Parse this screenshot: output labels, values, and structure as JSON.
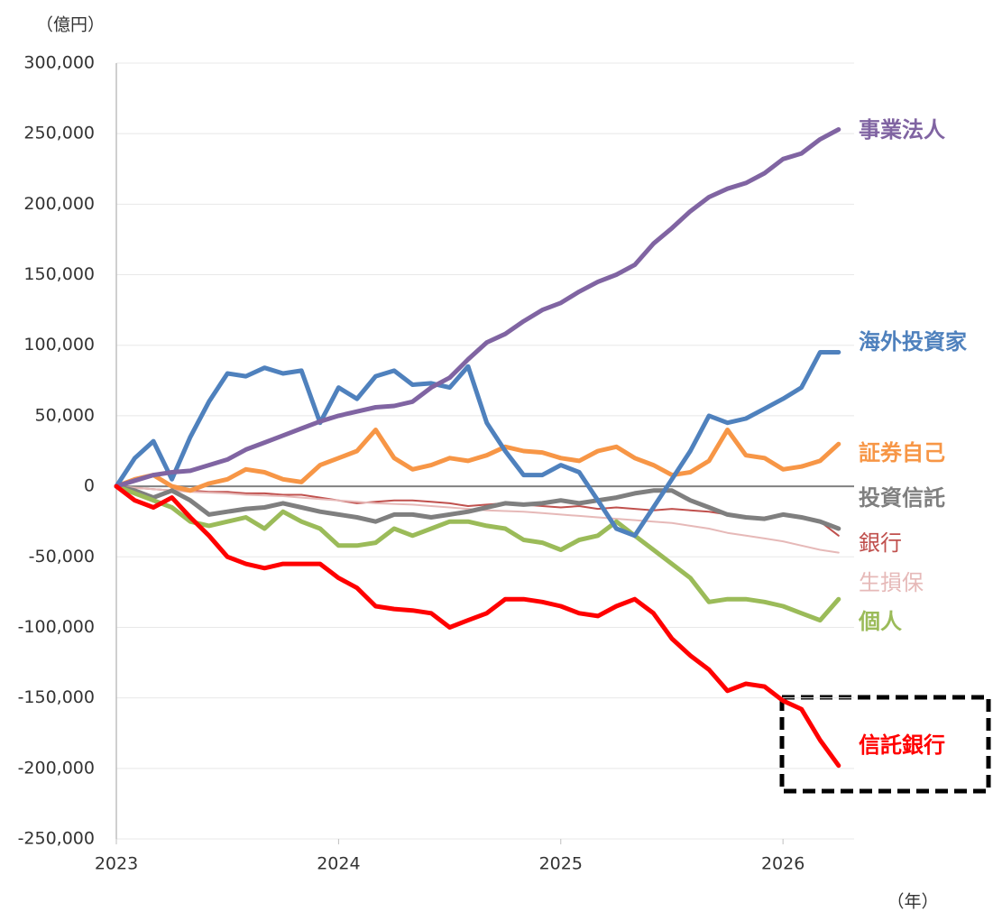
{
  "chart_data": {
    "type": "line",
    "y_label": "（億円）",
    "x_label": "（年）",
    "x": [
      2023,
      2023.083,
      2023.167,
      2023.25,
      2023.333,
      2023.417,
      2023.5,
      2023.583,
      2023.667,
      2023.75,
      2023.833,
      2023.917,
      2024,
      2024.083,
      2024.167,
      2024.25,
      2024.333,
      2024.417,
      2024.5,
      2024.583,
      2024.667,
      2024.75,
      2024.833,
      2024.917,
      2025,
      2025.083,
      2025.167,
      2025.25,
      2025.333,
      2025.417,
      2025.5,
      2025.583,
      2025.667,
      2025.75,
      2025.833,
      2025.917,
      2026,
      2026.083,
      2026.167,
      2026.25
    ],
    "xlim": [
      2023,
      2026.32
    ],
    "xticks": [
      2023,
      2024,
      2025,
      2026
    ],
    "ylim": [
      -250000,
      300000
    ],
    "yticks": [
      {
        "value": -250000,
        "label": "-250,000"
      },
      {
        "value": -200000,
        "label": "-200,000"
      },
      {
        "value": -150000,
        "label": "-150,000"
      },
      {
        "value": -100000,
        "label": "-100,000"
      },
      {
        "value": -50000,
        "label": "-50,000"
      },
      0,
      {
        "value": 50000,
        "label": "50,000"
      },
      {
        "value": 100000,
        "label": "100,000"
      },
      {
        "value": 150000,
        "label": "150,000"
      },
      {
        "value": 200000,
        "label": "200,000"
      },
      {
        "value": 250000,
        "label": "250,000"
      },
      {
        "value": 300000,
        "label": "300,000"
      }
    ],
    "grid": true,
    "series": [
      {
        "name": "銀行",
        "color": "#c0504d",
        "values": [
          0,
          -1000,
          -2000,
          -3000,
          -3000,
          -4000,
          -4000,
          -5000,
          -5000,
          -6000,
          -6000,
          -8000,
          -10000,
          -12000,
          -11000,
          -10000,
          -10000,
          -11000,
          -12000,
          -14000,
          -13000,
          -12000,
          -13000,
          -14000,
          -15000,
          -14000,
          -16000,
          -15000,
          -16000,
          -17000,
          -16000,
          -17000,
          -18000,
          -20000,
          -22000,
          -22000,
          -20000,
          -22000,
          -25000,
          -35000
        ]
      },
      {
        "name": "生損保",
        "color": "#e6b9b8",
        "values": [
          0,
          -1000,
          -2000,
          -3000,
          -4000,
          -4500,
          -5000,
          -6000,
          -6500,
          -7000,
          -8000,
          -9000,
          -10000,
          -11000,
          -12000,
          -12500,
          -13000,
          -14000,
          -15000,
          -16000,
          -17000,
          -17500,
          -18000,
          -19000,
          -20000,
          -21000,
          -22000,
          -23000,
          -24000,
          -25000,
          -26000,
          -28000,
          -30000,
          -33000,
          -35000,
          -37000,
          -39000,
          -42000,
          -45000,
          -47000
        ]
      },
      {
        "name": "証券自己",
        "color": "#f79646",
        "values": [
          0,
          5000,
          8000,
          0,
          -3000,
          2000,
          5000,
          12000,
          10000,
          5000,
          3000,
          15000,
          20000,
          25000,
          40000,
          20000,
          12000,
          15000,
          20000,
          18000,
          22000,
          28000,
          25000,
          24000,
          20000,
          18000,
          25000,
          28000,
          20000,
          15000,
          8000,
          10000,
          18000,
          40000,
          22000,
          20000,
          12000,
          14000,
          18000,
          30000
        ]
      },
      {
        "name": "投資信託",
        "color": "#7f7f7f",
        "values": [
          0,
          -3000,
          -8000,
          -3000,
          -10000,
          -20000,
          -18000,
          -16000,
          -15000,
          -12000,
          -15000,
          -18000,
          -20000,
          -22000,
          -25000,
          -20000,
          -20000,
          -22000,
          -20000,
          -18000,
          -15000,
          -12000,
          -13000,
          -12000,
          -10000,
          -12000,
          -10000,
          -8000,
          -5000,
          -3000,
          -3000,
          -10000,
          -15000,
          -20000,
          -22000,
          -23000,
          -20000,
          -22000,
          -25000,
          -30000
        ]
      },
      {
        "name": "個人",
        "color": "#9bbb59",
        "values": [
          0,
          -5000,
          -10000,
          -15000,
          -25000,
          -28000,
          -25000,
          -22000,
          -30000,
          -18000,
          -25000,
          -30000,
          -42000,
          -42000,
          -40000,
          -30000,
          -35000,
          -30000,
          -25000,
          -25000,
          -28000,
          -30000,
          -38000,
          -40000,
          -45000,
          -38000,
          -35000,
          -25000,
          -35000,
          -45000,
          -55000,
          -65000,
          -82000,
          -80000,
          -80000,
          -82000,
          -85000,
          -90000,
          -95000,
          -80000
        ]
      },
      {
        "name": "海外投資家",
        "color": "#4f81bd",
        "values": [
          0,
          20000,
          32000,
          5000,
          35000,
          60000,
          80000,
          78000,
          84000,
          80000,
          82000,
          45000,
          70000,
          62000,
          78000,
          82000,
          72000,
          73000,
          70000,
          85000,
          45000,
          25000,
          8000,
          8000,
          15000,
          10000,
          -10000,
          -30000,
          -35000,
          -15000,
          5000,
          25000,
          50000,
          45000,
          48000,
          55000,
          62000,
          70000,
          95000,
          95000
        ]
      },
      {
        "name": "事業法人",
        "color": "#8064a2",
        "values": [
          0,
          4000,
          8000,
          10000,
          11000,
          15000,
          19000,
          26000,
          31000,
          36000,
          41000,
          46000,
          50000,
          53000,
          56000,
          57000,
          60000,
          70000,
          77000,
          90000,
          102000,
          108000,
          117000,
          125000,
          130000,
          138000,
          145000,
          150000,
          157000,
          172000,
          183000,
          195000,
          205000,
          211000,
          215000,
          222000,
          232000,
          236000,
          246000,
          253000
        ]
      },
      {
        "name": "信託銀行",
        "color": "#ff0000",
        "values": [
          0,
          -10000,
          -15000,
          -8000,
          -22000,
          -35000,
          -50000,
          -55000,
          -58000,
          -55000,
          -55000,
          -55000,
          -65000,
          -72000,
          -85000,
          -87000,
          -88000,
          -90000,
          -100000,
          -95000,
          -90000,
          -80000,
          -80000,
          -82000,
          -85000,
          -90000,
          -92000,
          -85000,
          -80000,
          -90000,
          -108000,
          -120000,
          -130000,
          -145000,
          -140000,
          -142000,
          -152000,
          -158000,
          -180000,
          -198000
        ]
      }
    ]
  }
}
